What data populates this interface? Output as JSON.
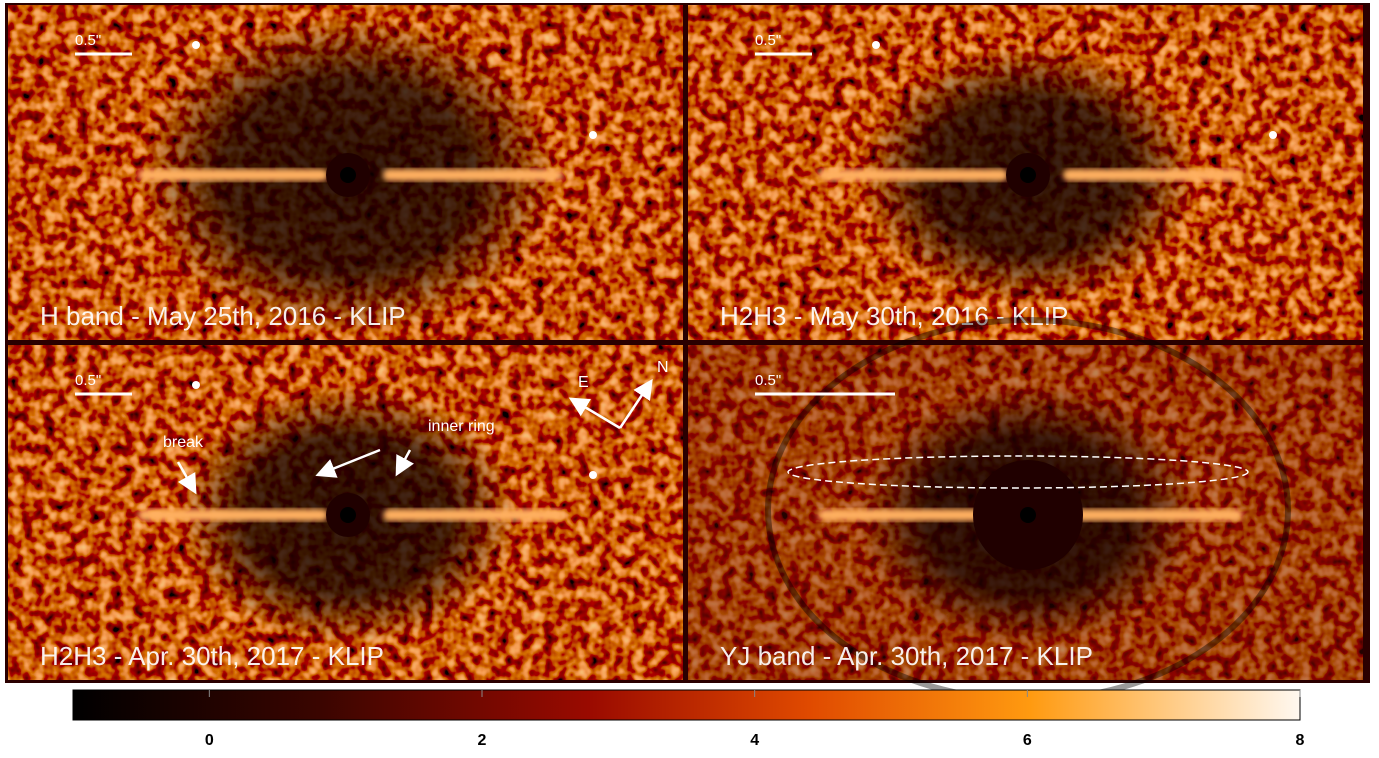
{
  "panels": [
    {
      "label": "H band - May 25th, 2016 - KLIP",
      "scale_bar": "0.5\""
    },
    {
      "label": "H2H3 - May 30th, 2016 - KLIP",
      "scale_bar": "0.5\""
    },
    {
      "label": "H2H3 - Apr. 30th, 2017 - KLIP",
      "scale_bar": "0.5\"",
      "annotations": [
        "break",
        "inner ring",
        "E",
        "N"
      ]
    },
    {
      "label": "YJ band - Apr. 30th, 2017 - KLIP",
      "scale_bar": "0.5\""
    }
  ],
  "colorbar": {
    "lim": [
      -1,
      8
    ],
    "ticks": [
      0,
      2,
      4,
      6,
      8
    ]
  }
}
